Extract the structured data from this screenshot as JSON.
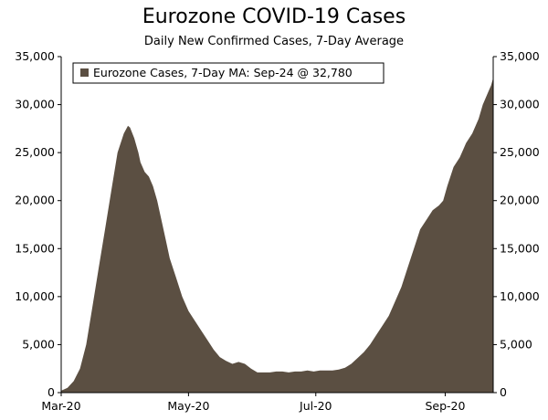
{
  "chart_data": {
    "type": "area",
    "title": "Eurozone COVID-19 Cases",
    "subtitle": "Daily New Confirmed Cases, 7-Day Average",
    "legend": "Eurozone Cases, 7-Day MA: Sep-24 @ 32,780",
    "legend_position": "top-left",
    "grid": false,
    "series_color": "#5b4f42",
    "xlim": [
      "2020-03-01",
      "2020-09-24"
    ],
    "ylim": [
      0,
      35000
    ],
    "x_ticks": [
      "2020-03-01",
      "2020-05-01",
      "2020-07-01",
      "2020-09-01"
    ],
    "x_tick_labels": [
      "Mar-20",
      "May-20",
      "Jul-20",
      "Sep-20"
    ],
    "y_ticks": [
      0,
      5000,
      10000,
      15000,
      20000,
      25000,
      30000,
      35000
    ],
    "y_tick_labels": [
      "0",
      "5,000",
      "10,000",
      "15,000",
      "20,000",
      "25,000",
      "30,000",
      "35,000"
    ],
    "series": [
      {
        "x": [
          "2020-03-01",
          "2020-03-04",
          "2020-03-07",
          "2020-03-10",
          "2020-03-13",
          "2020-03-16",
          "2020-03-19",
          "2020-03-22",
          "2020-03-25",
          "2020-03-28",
          "2020-03-31",
          "2020-04-02",
          "2020-04-03",
          "2020-04-05",
          "2020-04-07",
          "2020-04-08",
          "2020-04-10",
          "2020-04-12",
          "2020-04-14",
          "2020-04-16",
          "2020-04-18",
          "2020-04-20",
          "2020-04-22",
          "2020-04-25",
          "2020-04-28",
          "2020-05-01",
          "2020-05-04",
          "2020-05-07",
          "2020-05-10",
          "2020-05-13",
          "2020-05-16",
          "2020-05-19",
          "2020-05-22",
          "2020-05-25",
          "2020-05-28",
          "2020-05-31",
          "2020-06-03",
          "2020-06-06",
          "2020-06-09",
          "2020-06-12",
          "2020-06-15",
          "2020-06-18",
          "2020-06-21",
          "2020-06-24",
          "2020-06-27",
          "2020-06-30",
          "2020-07-03",
          "2020-07-06",
          "2020-07-09",
          "2020-07-12",
          "2020-07-15",
          "2020-07-18",
          "2020-07-21",
          "2020-07-24",
          "2020-07-27",
          "2020-07-30",
          "2020-08-02",
          "2020-08-05",
          "2020-08-08",
          "2020-08-11",
          "2020-08-14",
          "2020-08-17",
          "2020-08-20",
          "2020-08-23",
          "2020-08-26",
          "2020-08-29",
          "2020-08-31",
          "2020-09-02",
          "2020-09-05",
          "2020-09-08",
          "2020-09-11",
          "2020-09-14",
          "2020-09-17",
          "2020-09-19",
          "2020-09-21",
          "2020-09-22",
          "2020-09-23",
          "2020-09-24"
        ],
        "y": [
          200,
          500,
          1200,
          2500,
          5000,
          9000,
          13000,
          17000,
          21000,
          25000,
          27000,
          27800,
          27600,
          26500,
          25000,
          24000,
          23000,
          22500,
          21500,
          20000,
          18000,
          16000,
          14000,
          12000,
          10000,
          8500,
          7500,
          6500,
          5500,
          4500,
          3700,
          3300,
          3000,
          3200,
          3000,
          2500,
          2100,
          2100,
          2100,
          2200,
          2200,
          2100,
          2200,
          2200,
          2300,
          2200,
          2300,
          2300,
          2300,
          2400,
          2600,
          3000,
          3600,
          4200,
          5000,
          6000,
          7000,
          8000,
          9500,
          11000,
          13000,
          15000,
          17000,
          18000,
          19000,
          19500,
          20000,
          21500,
          23500,
          24500,
          26000,
          27000,
          28500,
          30000,
          31000,
          31500,
          32000,
          32780
        ]
      }
    ]
  }
}
